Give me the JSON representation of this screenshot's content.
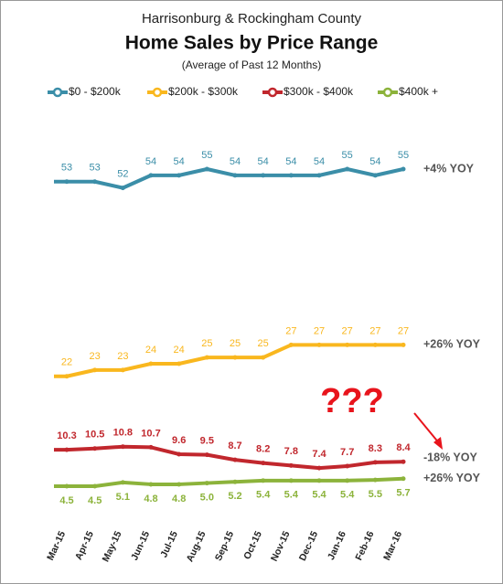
{
  "chart_data": {
    "type": "line",
    "title": "Home Sales by Price Range",
    "supertitle": "Harrisonburg & Rockingham County",
    "subtitle": "(Average of Past 12 Months)",
    "categories": [
      "Mar-15",
      "Apr-15",
      "May-15",
      "Jun-15",
      "Jul-15",
      "Aug-15",
      "Sep-15",
      "Oct-15",
      "Nov-15",
      "Dec-15",
      "Jan-16",
      "Feb-16",
      "Mar-16"
    ],
    "series": [
      {
        "name": "$0 - $200k",
        "color": "#3b8ea8",
        "values": [
          53,
          53,
          52,
          54,
          54,
          55,
          54,
          54,
          54,
          54,
          55,
          54,
          55
        ],
        "annotation": "+4% YOY"
      },
      {
        "name": "$200k - $300k",
        "color": "#f9b71e",
        "values": [
          22,
          23,
          23,
          24,
          24,
          25,
          25,
          25,
          27,
          27,
          27,
          27,
          27
        ],
        "annotation": "+26% YOY"
      },
      {
        "name": "$300k - $400k",
        "color": "#c1272d",
        "values": [
          10.3,
          10.5,
          10.8,
          10.7,
          9.6,
          9.5,
          8.7,
          8.2,
          7.8,
          7.4,
          7.7,
          8.3,
          8.4
        ],
        "annotation": "-18% YOY"
      },
      {
        "name": "$400k +",
        "color": "#8cb33b",
        "values": [
          4.5,
          4.5,
          5.1,
          4.8,
          4.8,
          5.0,
          5.2,
          5.4,
          5.4,
          5.4,
          5.4,
          5.5,
          5.7
        ],
        "value_labels": [
          "4.5",
          "4.5",
          "5.1",
          "4.8",
          "4.8",
          "5.0",
          "5.2",
          "5.4",
          "5.4",
          "5.4",
          "5.4",
          "5.5",
          "5.7"
        ],
        "annotation": "+26% YOY"
      }
    ],
    "callout": "???"
  }
}
